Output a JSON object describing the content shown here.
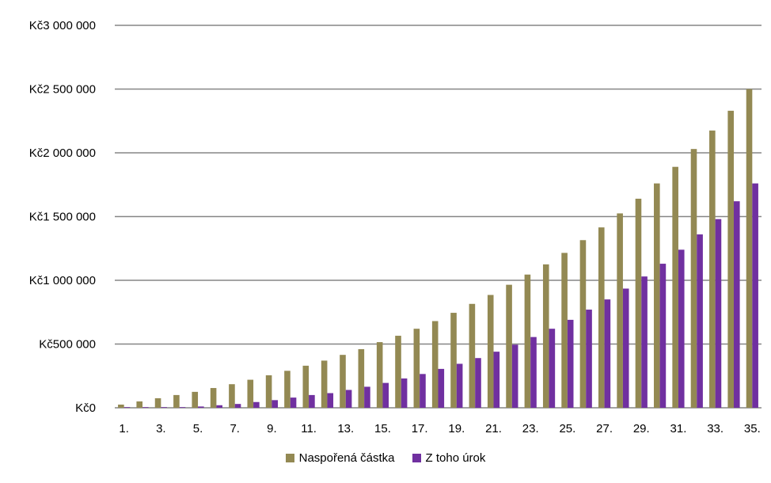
{
  "chart_data": {
    "type": "bar",
    "title": "",
    "xlabel": "",
    "ylabel": "",
    "ylim": [
      0,
      3000000
    ],
    "yticks": [
      {
        "value": 0,
        "label": "Kč0"
      },
      {
        "value": 500000,
        "label": "Kč500 000"
      },
      {
        "value": 1000000,
        "label": "Kč1 000 000"
      },
      {
        "value": 1500000,
        "label": "Kč1 500 000"
      },
      {
        "value": 2000000,
        "label": "Kč2 000 000"
      },
      {
        "value": 2500000,
        "label": "Kč2 500 000"
      },
      {
        "value": 3000000,
        "label": "Kč3 000 000"
      }
    ],
    "grid": true,
    "legend_position": "bottom",
    "categories": [
      "1.",
      "2.",
      "3.",
      "4.",
      "5.",
      "6.",
      "7.",
      "8.",
      "9.",
      "10.",
      "11.",
      "12.",
      "13.",
      "14.",
      "15.",
      "16.",
      "17.",
      "18.",
      "19.",
      "20.",
      "21.",
      "22.",
      "23.",
      "24.",
      "25.",
      "26.",
      "27.",
      "28.",
      "29.",
      "30.",
      "31.",
      "32.",
      "33.",
      "34.",
      "35."
    ],
    "xtick_labels": [
      "1.",
      "3.",
      "5.",
      "7.",
      "9.",
      "11.",
      "13.",
      "15.",
      "17.",
      "19.",
      "21.",
      "23.",
      "25.",
      "27.",
      "29.",
      "31.",
      "33.",
      "35."
    ],
    "series": [
      {
        "name": "Naspořená částka",
        "color": "#938953",
        "values": [
          25000,
          50000,
          75000,
          100000,
          125000,
          155000,
          185000,
          220000,
          255000,
          290000,
          330000,
          370000,
          415000,
          460000,
          515000,
          565000,
          620000,
          680000,
          745000,
          815000,
          885000,
          965000,
          1045000,
          1125000,
          1215000,
          1315000,
          1415000,
          1525000,
          1640000,
          1760000,
          1890000,
          2030000,
          2175000,
          2330000,
          2500000
        ]
      },
      {
        "name": "Z toho úrok",
        "color": "#7030A0",
        "values": [
          5000,
          5000,
          5000,
          5000,
          10000,
          20000,
          30000,
          45000,
          60000,
          80000,
          100000,
          115000,
          140000,
          165000,
          195000,
          230000,
          265000,
          305000,
          345000,
          390000,
          440000,
          495000,
          555000,
          620000,
          690000,
          770000,
          850000,
          935000,
          1030000,
          1130000,
          1240000,
          1360000,
          1480000,
          1620000,
          1760000
        ]
      }
    ]
  }
}
